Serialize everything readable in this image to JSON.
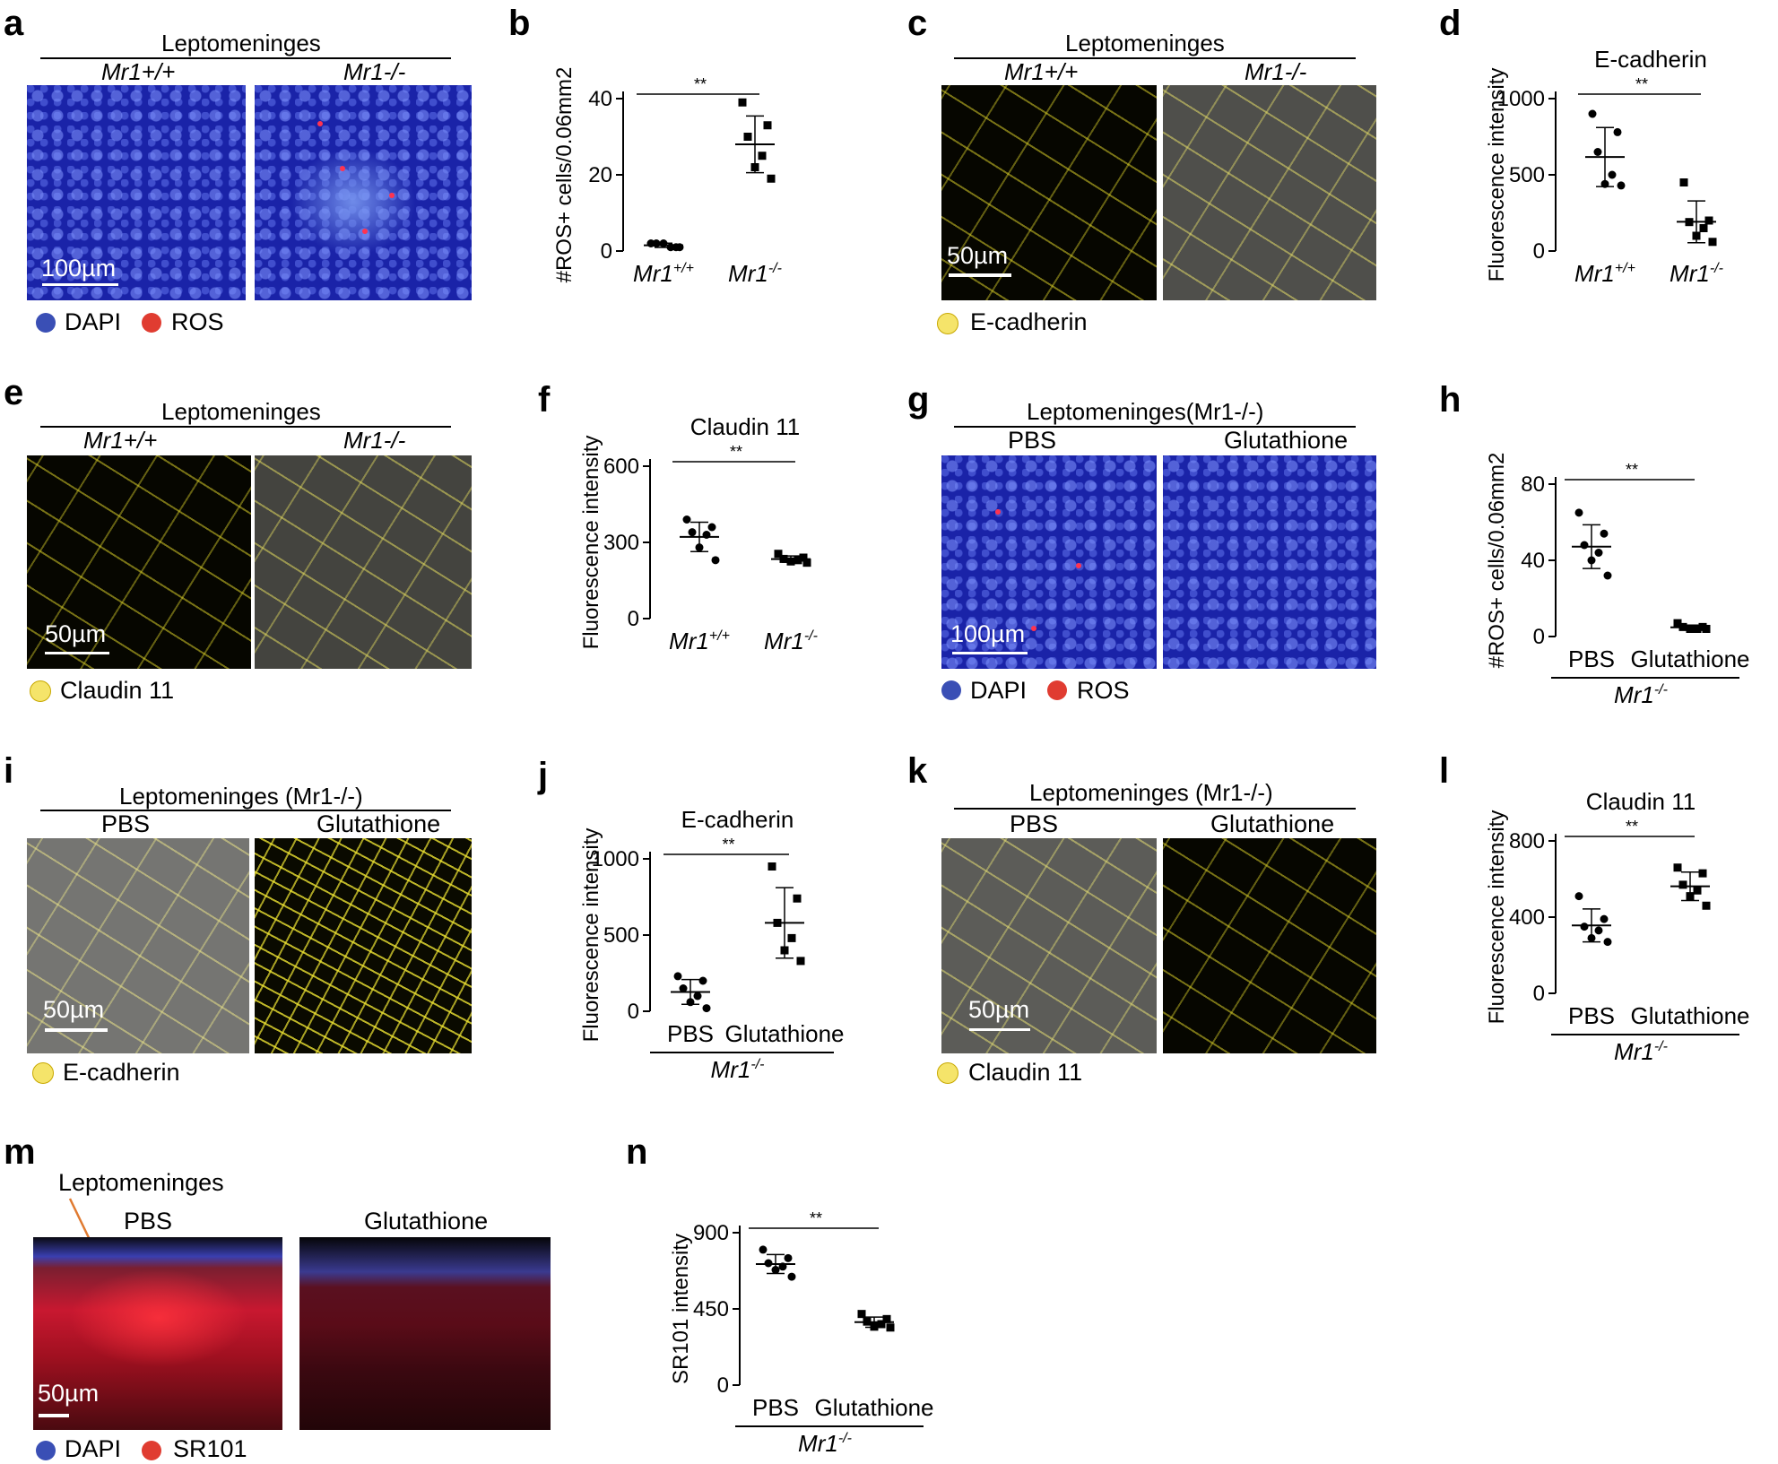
{
  "panels": {
    "a": {
      "letter": "a",
      "header": "Leptomeninges",
      "left": "Mr1+/+",
      "right": "Mr1-/-",
      "scale": "100µm",
      "legend": [
        "DAPI",
        "ROS"
      ]
    },
    "b": {
      "letter": "b"
    },
    "c": {
      "letter": "c",
      "header": "Leptomeninges",
      "left": "Mr1+/+",
      "right": "Mr1-/-",
      "scale": "50µm",
      "legend": [
        "E-cadherin"
      ]
    },
    "d": {
      "letter": "d"
    },
    "e": {
      "letter": "e",
      "header": "Leptomeninges",
      "left": "Mr1+/+",
      "right": "Mr1-/-",
      "scale": "50µm",
      "legend": [
        "Claudin 11"
      ]
    },
    "f": {
      "letter": "f"
    },
    "g": {
      "letter": "g",
      "header": "Leptomeninges(Mr1-/-)",
      "left": "PBS",
      "right": "Glutathione",
      "scale": "100µm",
      "legend": [
        "DAPI",
        "ROS"
      ]
    },
    "h": {
      "letter": "h"
    },
    "i": {
      "letter": "i",
      "header": "Leptomeninges (Mr1-/-)",
      "left": "PBS",
      "right": "Glutathione",
      "scale": "50µm",
      "legend": [
        "E-cadherin"
      ]
    },
    "j": {
      "letter": "j"
    },
    "k": {
      "letter": "k",
      "header": "Leptomeninges (Mr1-/-)",
      "left": "PBS",
      "right": "Glutathione",
      "scale": "50µm",
      "legend": [
        "Claudin 11"
      ]
    },
    "l": {
      "letter": "l"
    },
    "m": {
      "letter": "m",
      "header": "Leptomeninges",
      "left": "PBS",
      "right": "Glutathione",
      "scale": "50µm",
      "legend": [
        "DAPI",
        "SR101"
      ]
    },
    "n": {
      "letter": "n"
    }
  },
  "colors": {
    "dapi": "#3a4fb5",
    "ros": "#e03c31",
    "ecad": "#f5e46a",
    "sr101": "#e03c31"
  },
  "chart_data": [
    {
      "panel": "b",
      "type": "scatter",
      "title": "",
      "ylabel": "#ROS+ cells/0.06mm2",
      "ylim": [
        0,
        40
      ],
      "yticks": [
        0,
        20,
        40
      ],
      "categories": [
        "Mr1+/+",
        "Mr1-/-"
      ],
      "significance": "**",
      "series": [
        {
          "values": [
            2,
            1,
            2,
            1,
            2,
            1
          ]
        },
        {
          "values": [
            39,
            33,
            30,
            25,
            22,
            19
          ]
        }
      ]
    },
    {
      "panel": "d",
      "type": "scatter",
      "title": "E-cadherin",
      "ylabel": "Fluorescence intensity",
      "ylim": [
        0,
        1000
      ],
      "yticks": [
        0,
        500,
        1000
      ],
      "categories": [
        "Mr1+/+",
        "Mr1-/-"
      ],
      "significance": "**",
      "series": [
        {
          "values": [
            900,
            780,
            650,
            500,
            440,
            430
          ]
        },
        {
          "values": [
            450,
            200,
            190,
            150,
            100,
            60
          ]
        }
      ]
    },
    {
      "panel": "f",
      "type": "scatter",
      "title": "Claudin 11",
      "ylabel": "Fluorescence intensity",
      "ylim": [
        0,
        600
      ],
      "yticks": [
        0,
        300,
        600
      ],
      "categories": [
        "Mr1+/+",
        "Mr1-/-"
      ],
      "significance": "**",
      "series": [
        {
          "values": [
            390,
            360,
            340,
            330,
            280,
            230
          ]
        },
        {
          "values": [
            255,
            240,
            235,
            230,
            225,
            220
          ]
        }
      ]
    },
    {
      "panel": "h",
      "type": "scatter",
      "title": "",
      "ylabel": "#ROS+ cells/0.06mm2",
      "ylim": [
        0,
        80
      ],
      "yticks": [
        0,
        40,
        80
      ],
      "categories": [
        "PBS",
        "Glutathione"
      ],
      "group": "Mr1-/-",
      "significance": "**",
      "series": [
        {
          "values": [
            65,
            54,
            48,
            44,
            40,
            32
          ]
        },
        {
          "values": [
            7,
            5,
            5,
            4,
            4,
            4
          ]
        }
      ]
    },
    {
      "panel": "j",
      "type": "scatter",
      "title": "E-cadherin",
      "ylabel": "Fluorescence intensity",
      "ylim": [
        0,
        1000
      ],
      "yticks": [
        0,
        500,
        1000
      ],
      "categories": [
        "PBS",
        "Glutathione"
      ],
      "group": "Mr1-/-",
      "significance": "**",
      "series": [
        {
          "values": [
            230,
            200,
            150,
            100,
            60,
            20
          ]
        },
        {
          "values": [
            950,
            740,
            580,
            480,
            400,
            330
          ]
        }
      ]
    },
    {
      "panel": "l",
      "type": "scatter",
      "title": "Claudin 11",
      "ylabel": "Fluorescence intensity",
      "ylim": [
        0,
        800
      ],
      "yticks": [
        0,
        400,
        800
      ],
      "categories": [
        "PBS",
        "Glutathione"
      ],
      "group": "Mr1-/-",
      "significance": "**",
      "series": [
        {
          "values": [
            510,
            390,
            350,
            330,
            290,
            270
          ]
        },
        {
          "values": [
            660,
            630,
            570,
            540,
            510,
            460
          ]
        }
      ]
    },
    {
      "panel": "n",
      "type": "scatter",
      "title": "",
      "ylabel": "SR101 intensity",
      "ylim": [
        0,
        900
      ],
      "yticks": [
        0,
        450,
        900
      ],
      "categories": [
        "PBS",
        "Glutathione"
      ],
      "group": "Mr1-/-",
      "significance": "**",
      "series": [
        {
          "values": [
            800,
            750,
            720,
            700,
            680,
            640
          ]
        },
        {
          "values": [
            420,
            390,
            375,
            360,
            345,
            340
          ]
        }
      ]
    }
  ]
}
